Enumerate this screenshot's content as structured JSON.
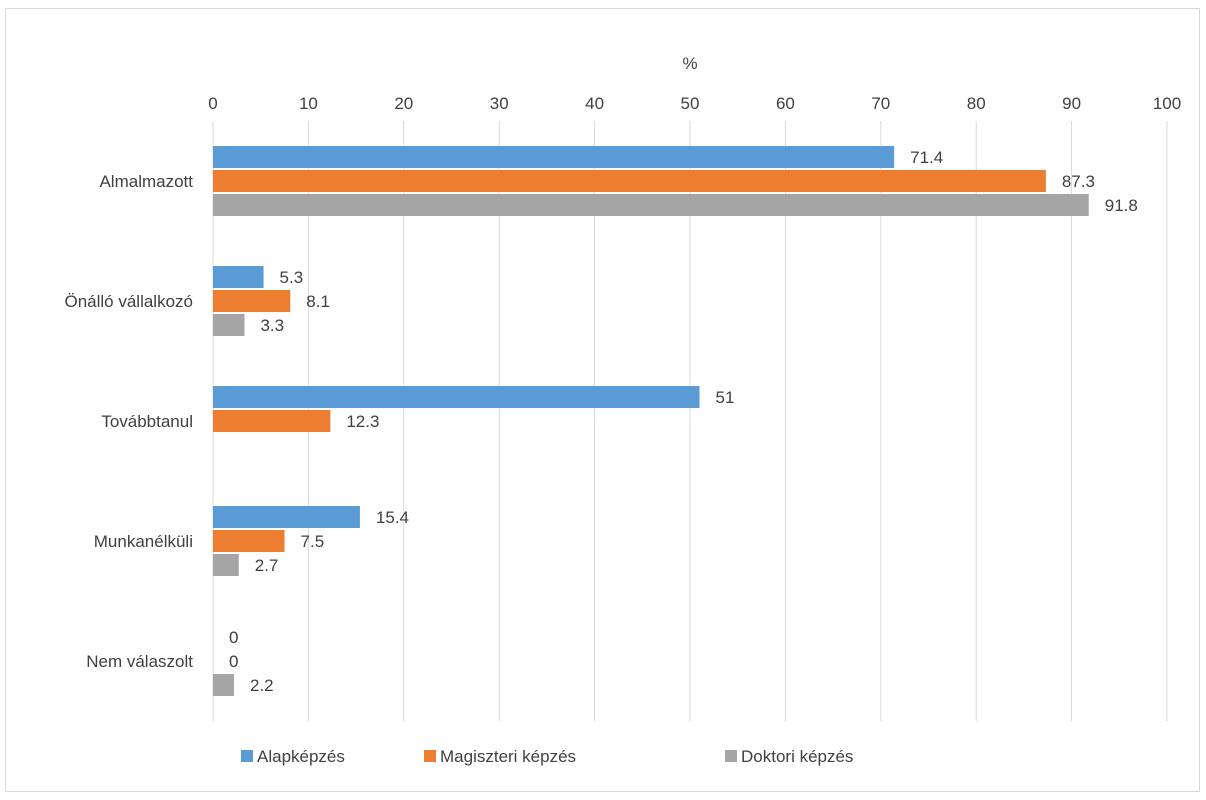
{
  "chart_data": {
    "type": "bar",
    "orientation": "horizontal",
    "categories": [
      "Almalmazott",
      "Önálló vállalkozó",
      "Továbbtanul",
      "Munkanélküli",
      "Nem válaszolt"
    ],
    "series": [
      {
        "name": "Alapképzés",
        "color": "#5b9bd5",
        "values": [
          71.4,
          5.3,
          51,
          15.4,
          0
        ]
      },
      {
        "name": "Magiszteri képzés",
        "color": "#ed7d31",
        "values": [
          87.3,
          8.1,
          12.3,
          7.5,
          0
        ]
      },
      {
        "name": "Doktori képzés",
        "color": "#a5a5a5",
        "values": [
          91.8,
          3.3,
          null,
          2.7,
          2.2
        ]
      }
    ],
    "data_labels": [
      [
        "71.4",
        "5.3",
        "51",
        "15.4",
        "0"
      ],
      [
        "87.3",
        "8.1",
        "12.3",
        "7.5",
        "0"
      ],
      [
        "91.8",
        "3.3",
        null,
        "2.7",
        "2.2"
      ]
    ],
    "x_axis": {
      "title": "%",
      "position": "top",
      "range": [
        0,
        100
      ],
      "ticks": [
        "0",
        "10",
        "20",
        "30",
        "40",
        "50",
        "60",
        "70",
        "80",
        "90",
        "100"
      ]
    },
    "grid": "vertical",
    "legend": "bottom"
  }
}
